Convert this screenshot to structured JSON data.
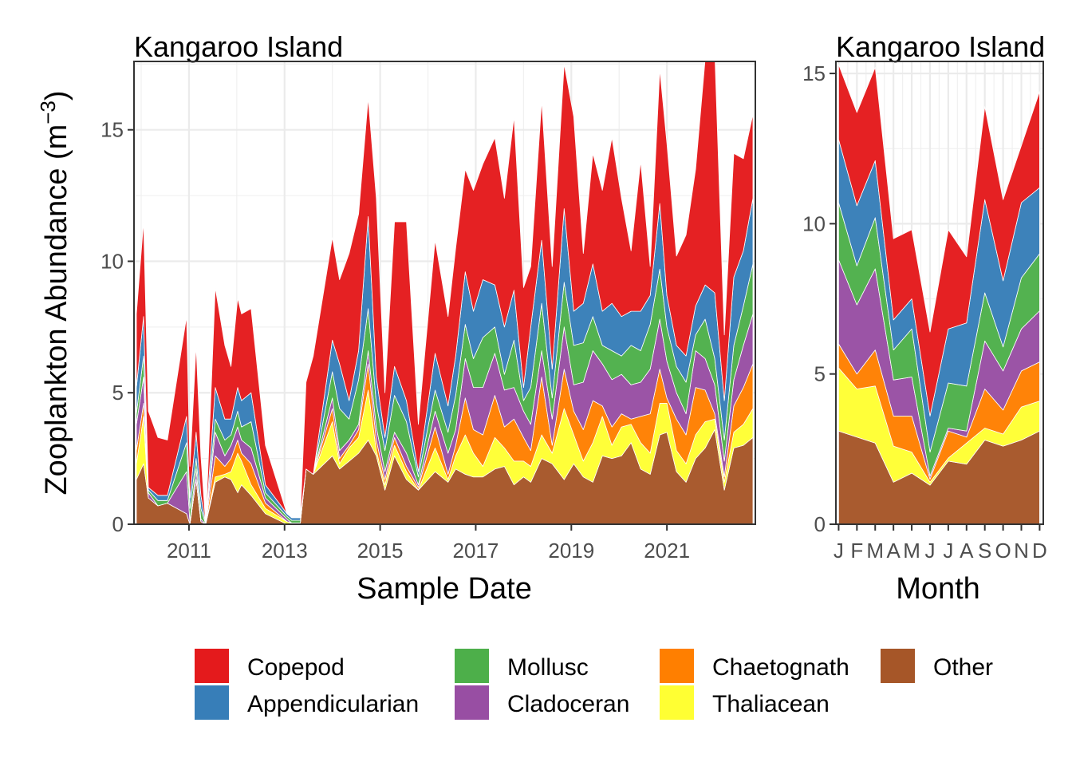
{
  "figure": {
    "ylabel_main": "Zooplankton Abundance (m",
    "ylabel_sup": "−3",
    "ylabel_close": ")"
  },
  "legend": {
    "items": [
      {
        "label": "Copepod",
        "color": "#E41A1C"
      },
      {
        "label": "Appendicularian",
        "color": "#377EB8"
      },
      {
        "label": "Mollusc",
        "color": "#4DAF4A"
      },
      {
        "label": "Cladoceran",
        "color": "#984EA3"
      },
      {
        "label": "Chaetognath",
        "color": "#FF7F00"
      },
      {
        "label": "Thaliacean",
        "color": "#FFFF33"
      },
      {
        "label": "Other",
        "color": "#A65628"
      }
    ]
  },
  "chart_data": [
    {
      "type": "area",
      "stacked": true,
      "title": "Kangaroo Island",
      "xlabel": "Sample Date",
      "ylabel": "Zooplankton Abundance (m−3)",
      "x_axis": "date (decimal year)",
      "xlim": [
        2009.85,
        2022.85
      ],
      "ylim": [
        0,
        17.6
      ],
      "xticks": [
        2011,
        2013,
        2015,
        2017,
        2019,
        2021
      ],
      "yticks": [
        0,
        5,
        10,
        15
      ],
      "grid": true,
      "x": [
        2009.9,
        2010.05,
        2010.15,
        2010.35,
        2010.55,
        2010.95,
        2011.02,
        2011.15,
        2011.25,
        2011.35,
        2011.55,
        2011.75,
        2011.88,
        2012.02,
        2012.1,
        2012.3,
        2012.6,
        2013.05,
        2013.15,
        2013.33,
        2013.45,
        2013.6,
        2014.0,
        2014.15,
        2014.35,
        2014.55,
        2014.75,
        2014.92,
        2015.1,
        2015.3,
        2015.55,
        2015.8,
        2016.15,
        2016.42,
        2016.58,
        2016.78,
        2016.95,
        2017.15,
        2017.4,
        2017.6,
        2017.8,
        2018.0,
        2018.15,
        2018.38,
        2018.6,
        2018.85,
        2019.05,
        2019.25,
        2019.45,
        2019.65,
        2019.85,
        2020.05,
        2020.25,
        2020.45,
        2020.65,
        2020.85,
        2021.0,
        2021.2,
        2021.4,
        2021.6,
        2021.8,
        2022.0,
        2022.2,
        2022.4,
        2022.6,
        2022.8
      ],
      "series": [
        {
          "name": "Other",
          "color": "#A65628",
          "values": [
            1.7,
            2.3,
            1.0,
            0.7,
            0.8,
            0.4,
            0.0,
            1.7,
            0.1,
            0.0,
            1.6,
            1.8,
            1.7,
            1.2,
            1.5,
            1.1,
            0.4,
            0.0,
            0.05,
            0.05,
            2.1,
            1.9,
            2.6,
            2.1,
            2.4,
            2.7,
            3.2,
            2.6,
            1.3,
            2.6,
            1.7,
            1.3,
            2.0,
            1.6,
            2.1,
            1.9,
            1.8,
            1.8,
            2.1,
            2.2,
            1.5,
            1.8,
            1.6,
            2.5,
            2.3,
            1.7,
            2.3,
            1.8,
            1.6,
            2.6,
            2.5,
            2.6,
            3.1,
            2.1,
            1.9,
            3.4,
            3.5,
            2.0,
            1.6,
            2.5,
            2.9,
            3.6,
            1.3,
            2.9,
            3.0,
            3.3
          ]
        },
        {
          "name": "Thaliacean",
          "color": "#FFFF33",
          "values": [
            0.6,
            1.8,
            0.0,
            0.0,
            0.0,
            0.0,
            0.0,
            0.0,
            0.0,
            0.0,
            0.2,
            0.1,
            0.3,
            1.5,
            0.9,
            0.4,
            0.2,
            0.1,
            0.0,
            0.0,
            0.0,
            0.0,
            1.3,
            0.2,
            0.5,
            0.6,
            1.9,
            0.2,
            0.2,
            0.4,
            0.3,
            0.0,
            0.9,
            0.1,
            0.5,
            1.5,
            0.9,
            0.4,
            1.2,
            0.7,
            0.9,
            0.6,
            0.6,
            0.9,
            0.4,
            2.7,
            1.1,
            0.6,
            1.5,
            1.5,
            0.5,
            1.1,
            0.7,
            1.0,
            0.8,
            1.2,
            1.1,
            0.8,
            0.7,
            0.9,
            1.0,
            0.4,
            0.3,
            0.6,
            0.8,
            1.1
          ]
        },
        {
          "name": "Chaetognath",
          "color": "#FF7F00",
          "values": [
            0.5,
            0.5,
            0.0,
            0.0,
            0.0,
            0.0,
            0.0,
            0.0,
            0.0,
            0.0,
            0.8,
            0.3,
            0.5,
            0.5,
            0.3,
            0.8,
            0.2,
            0.0,
            0.0,
            0.0,
            0.0,
            0.0,
            0.5,
            0.2,
            0.1,
            0.3,
            1.0,
            0.4,
            0.2,
            0.3,
            0.2,
            0.1,
            0.8,
            0.2,
            0.4,
            1.4,
            0.9,
            1.2,
            1.6,
            0.8,
            1.6,
            0.9,
            0.6,
            2.2,
            0.3,
            1.5,
            0.9,
            1.2,
            1.6,
            0.4,
            0.7,
            0.5,
            0.2,
            1.0,
            1.5,
            1.3,
            0.2,
            1.2,
            1.1,
            1.8,
            1.2,
            0.2,
            0.2,
            1.0,
            1.4,
            1.7
          ]
        },
        {
          "name": "Cladoceran",
          "color": "#984EA3",
          "values": [
            1.0,
            1.0,
            0.2,
            0.0,
            0.0,
            1.6,
            0.1,
            0.4,
            0.1,
            0.0,
            0.9,
            0.4,
            0.5,
            0.5,
            0.5,
            0.6,
            0.2,
            0.1,
            0.0,
            0.0,
            0.0,
            0.0,
            0.4,
            0.3,
            0.2,
            0.2,
            0.5,
            0.5,
            0.3,
            0.2,
            0.5,
            0.1,
            0.6,
            0.8,
            0.6,
            1.5,
            1.6,
            1.8,
            1.6,
            1.4,
            1.2,
            1.0,
            1.0,
            1.0,
            1.0,
            1.6,
            1.0,
            1.8,
            1.9,
            1.6,
            1.8,
            1.5,
            1.3,
            1.3,
            1.7,
            1.9,
            1.4,
            1.0,
            0.8,
            1.4,
            1.2,
            1.1,
            0.6,
            1.0,
            1.6,
            1.9
          ]
        },
        {
          "name": "Mollusc",
          "color": "#4DAF4A",
          "values": [
            0.4,
            0.8,
            0.1,
            0.2,
            0.1,
            1.1,
            0.5,
            0.4,
            0.4,
            0.0,
            0.5,
            0.6,
            0.4,
            0.6,
            0.5,
            1.0,
            0.2,
            0.1,
            0.1,
            0.1,
            0.0,
            0.0,
            1.0,
            1.6,
            0.8,
            1.7,
            1.6,
            0.9,
            0.8,
            1.4,
            1.2,
            0.3,
            0.8,
            0.8,
            1.3,
            1.3,
            1.1,
            1.9,
            1.0,
            0.6,
            1.8,
            0.4,
            1.4,
            1.8,
            0.8,
            1.7,
            1.5,
            1.5,
            1.3,
            0.7,
            1.1,
            0.7,
            1.5,
            1.2,
            1.7,
            1.9,
            1.3,
            1.0,
            1.2,
            0.6,
            1.5,
            1.0,
            0.8,
            1.3,
            1.5,
            1.9
          ]
        },
        {
          "name": "Appendicularian",
          "color": "#377EB8",
          "values": [
            1.0,
            1.5,
            0.1,
            0.2,
            0.2,
            1.0,
            0.4,
            1.0,
            0.5,
            0.0,
            1.2,
            0.8,
            0.6,
            0.9,
            1.0,
            1.1,
            0.3,
            0.1,
            0.1,
            0.1,
            0.0,
            0.0,
            1.2,
            1.7,
            0.7,
            1.1,
            3.5,
            1.0,
            0.5,
            1.1,
            0.8,
            0.2,
            1.4,
            1.0,
            1.5,
            2.0,
            1.8,
            2.2,
            1.6,
            1.8,
            1.9,
            0.5,
            2.3,
            2.4,
            1.1,
            2.8,
            1.3,
            1.5,
            2.0,
            1.3,
            1.8,
            1.5,
            1.3,
            1.5,
            1.1,
            2.5,
            1.2,
            0.8,
            1.0,
            1.1,
            1.3,
            2.5,
            1.5,
            2.6,
            2.1,
            2.5
          ]
        },
        {
          "name": "Copepod",
          "color": "#E41A1C",
          "values": [
            2.8,
            3.6,
            2.9,
            2.2,
            2.1,
            3.8,
            1.2,
            3.3,
            1.5,
            0.0,
            3.8,
            2.8,
            2.0,
            3.4,
            3.3,
            3.2,
            1.5,
            0.0,
            0.0,
            0.0,
            3.3,
            4.5,
            3.9,
            3.2,
            5.6,
            5.2,
            4.5,
            6.8,
            1.7,
            5.5,
            6.8,
            1.8,
            4.3,
            3.4,
            4.1,
            3.9,
            4.6,
            4.4,
            5.6,
            4.9,
            6.6,
            3.8,
            2.3,
            5.3,
            3.9,
            5.5,
            7.4,
            1.9,
            4.2,
            4.6,
            6.3,
            4.5,
            2.3,
            5.7,
            1.1,
            5.1,
            5.8,
            3.4,
            4.6,
            5.2,
            8.6,
            9.2,
            2.5,
            4.7,
            3.5,
            3.2
          ]
        }
      ]
    },
    {
      "type": "area",
      "stacked": true,
      "title": "Kangaroo Island",
      "xlabel": "Month",
      "ylabel": "Zooplankton Abundance (m−3)",
      "xlim": [
        0.85,
        12.2
      ],
      "ylim": [
        0,
        15.4
      ],
      "categories": [
        "J",
        "F",
        "M",
        "A",
        "M",
        "J",
        "J",
        "A",
        "S",
        "O",
        "N",
        "D"
      ],
      "yticks": [
        0,
        5,
        10,
        15
      ],
      "grid": true,
      "series": [
        {
          "name": "Other",
          "color": "#A65628",
          "values": [
            3.1,
            2.9,
            2.7,
            1.4,
            1.7,
            1.3,
            2.1,
            2.0,
            2.8,
            2.6,
            2.8,
            3.1
          ]
        },
        {
          "name": "Thaliacean",
          "color": "#FFFF33",
          "values": [
            2.1,
            1.6,
            1.9,
            1.2,
            0.7,
            0.1,
            0.1,
            0.7,
            0.4,
            0.4,
            1.1,
            1.0
          ]
        },
        {
          "name": "Chaetognath",
          "color": "#FF7F00",
          "values": [
            0.8,
            0.5,
            1.2,
            1.0,
            1.2,
            0.1,
            0.9,
            0.2,
            1.3,
            0.8,
            1.2,
            1.3
          ]
        },
        {
          "name": "Cladoceran",
          "color": "#984EA3",
          "values": [
            2.8,
            2.3,
            2.7,
            1.2,
            1.3,
            0.1,
            0.1,
            0.2,
            1.6,
            1.3,
            1.4,
            1.7
          ]
        },
        {
          "name": "Mollusc",
          "color": "#4DAF4A",
          "values": [
            1.9,
            1.3,
            1.7,
            1.0,
            1.6,
            0.8,
            1.5,
            1.5,
            1.6,
            0.8,
            1.7,
            1.9
          ]
        },
        {
          "name": "Appendicularian",
          "color": "#377EB8",
          "values": [
            2.1,
            2.0,
            1.9,
            1.0,
            1.0,
            1.2,
            1.8,
            2.1,
            3.1,
            2.2,
            2.5,
            2.2
          ]
        },
        {
          "name": "Copepod",
          "color": "#E41A1C",
          "values": [
            2.5,
            3.1,
            3.1,
            2.7,
            2.3,
            2.8,
            3.3,
            2.2,
            3.1,
            2.7,
            1.9,
            3.2
          ]
        }
      ]
    }
  ]
}
